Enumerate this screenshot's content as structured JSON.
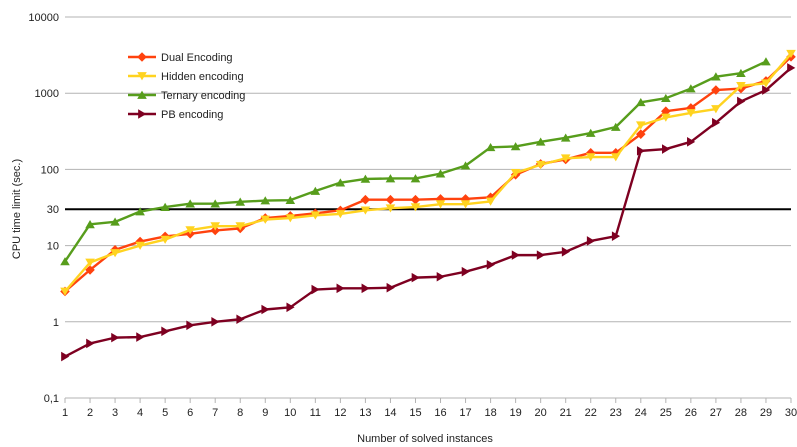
{
  "chart_data": {
    "type": "line",
    "title": "",
    "xlabel": "Number of solved instances",
    "ylabel": "CPU time limit (sec.)",
    "y_scale": "log",
    "ylim": [
      0.1,
      10000
    ],
    "xlim": [
      1,
      30
    ],
    "grid": "horizontal",
    "legend_position": "top-left",
    "x": [
      1,
      2,
      3,
      4,
      5,
      6,
      7,
      8,
      9,
      10,
      11,
      12,
      13,
      14,
      15,
      16,
      17,
      18,
      19,
      20,
      21,
      22,
      23,
      24,
      25,
      26,
      27,
      28,
      29,
      30
    ],
    "x_tick_labels": [
      "1",
      "2",
      "3",
      "4",
      "5",
      "6",
      "7",
      "8",
      "9",
      "10",
      "11",
      "12",
      "13",
      "14",
      "15",
      "16",
      "17",
      "18",
      "19",
      "20",
      "21",
      "22",
      "23",
      "24",
      "25",
      "26",
      "27",
      "28",
      "29",
      "30"
    ],
    "y_tick_values": [
      0.1,
      1,
      10,
      30,
      100,
      1000,
      10000
    ],
    "y_tick_labels": [
      "0,1",
      "1",
      "10",
      "30",
      "100",
      "1000",
      "10000"
    ],
    "reference_line": {
      "y": 30,
      "color": "#000000"
    },
    "series": [
      {
        "name": "Dual Encoding",
        "color": "#ff420e",
        "marker": "diamond",
        "values": [
          2.5,
          4.8,
          8.8,
          11.3,
          13.2,
          14.3,
          15.8,
          16.8,
          23,
          24.5,
          26.5,
          29,
          40,
          40,
          40,
          41,
          41,
          43,
          85,
          118,
          135,
          165,
          165,
          290,
          580,
          640,
          1100,
          1150,
          1450,
          3000
        ]
      },
      {
        "name": "Hidden encoding",
        "color": "#ffd320",
        "marker": "triangle-down",
        "values": [
          2.5,
          6.0,
          8.0,
          10.0,
          12.0,
          16.0,
          18.0,
          18.0,
          22.0,
          23.0,
          25.0,
          26.0,
          29.0,
          31.0,
          32.0,
          35.0,
          35.0,
          38.0,
          90.0,
          115.0,
          140.0,
          145.0,
          145.0,
          380.0,
          480.0,
          550.0,
          620.0,
          1250.0,
          1350.0,
          3300.0
        ]
      },
      {
        "name": "Ternary encoding",
        "color": "#579d1c",
        "marker": "triangle-up",
        "values": [
          6.2,
          19,
          20.5,
          28,
          32,
          35.5,
          35.5,
          37.5,
          39,
          39.5,
          52,
          67,
          75,
          76,
          76,
          88,
          112,
          195,
          200,
          230,
          260,
          300,
          360,
          760,
          860,
          1150,
          1650,
          1830,
          2600,
          null
        ]
      },
      {
        "name": "PB encoding",
        "color": "#7e0021",
        "marker": "triangle-right",
        "values": [
          0.35,
          0.52,
          0.62,
          0.63,
          0.75,
          0.9,
          1.0,
          1.08,
          1.45,
          1.55,
          2.65,
          2.75,
          2.75,
          2.8,
          3.8,
          3.9,
          4.55,
          5.6,
          7.5,
          7.5,
          8.3,
          11.5,
          13.3,
          175,
          185,
          230,
          410,
          780,
          1100,
          2150
        ]
      }
    ]
  }
}
